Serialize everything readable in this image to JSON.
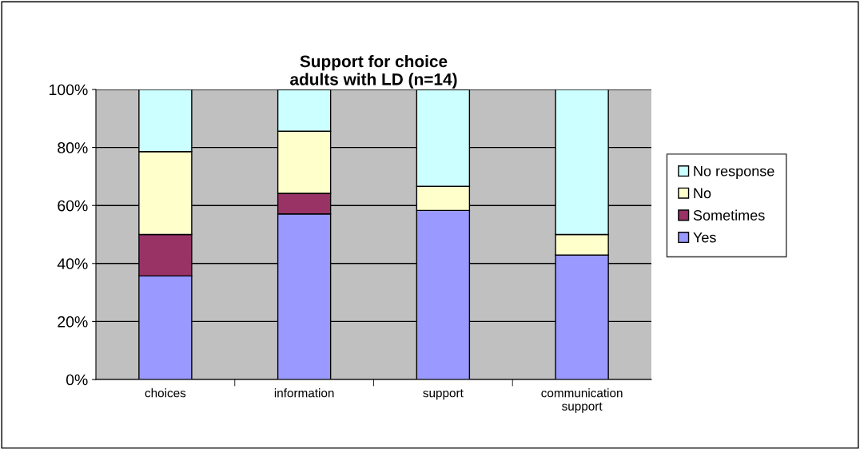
{
  "chart_data": {
    "type": "bar",
    "stacked": true,
    "title": "Support for choice\nadults with LD (n=14)",
    "categories": [
      "choices",
      "information",
      "support",
      "communication\nsupport"
    ],
    "series": [
      {
        "name": "Yes",
        "color": "#9999ff",
        "values": [
          35.7,
          57.1,
          58.3,
          42.9
        ]
      },
      {
        "name": "Sometimes",
        "color": "#993366",
        "values": [
          14.3,
          7.1,
          0,
          0
        ]
      },
      {
        "name": "No",
        "color": "#ffffcc",
        "values": [
          28.6,
          21.4,
          8.3,
          7.1
        ]
      },
      {
        "name": "No response",
        "color": "#ccffff",
        "values": [
          21.4,
          14.3,
          33.3,
          50.0
        ]
      }
    ],
    "ylim": [
      0,
      100
    ],
    "yticks": [
      {
        "value": 0,
        "label": "0%"
      },
      {
        "value": 20,
        "label": "20%"
      },
      {
        "value": 40,
        "label": "40%"
      },
      {
        "value": 60,
        "label": "60%"
      },
      {
        "value": 80,
        "label": "80%"
      },
      {
        "value": 100,
        "label": "100%"
      }
    ],
    "grid": "y",
    "legend": "right"
  }
}
